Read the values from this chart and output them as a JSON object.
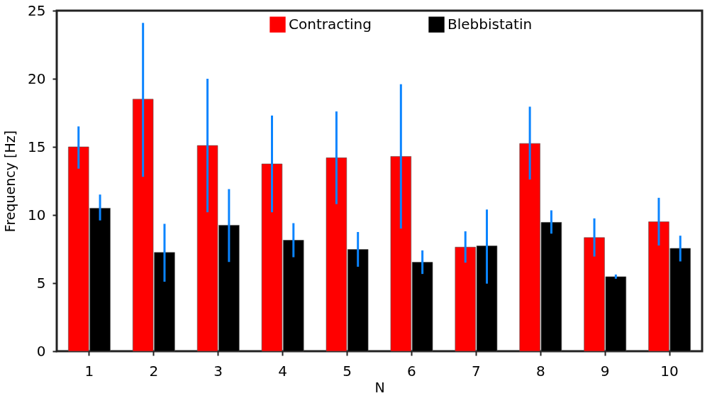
{
  "chart_data": {
    "type": "bar",
    "xlabel": "N",
    "ylabel": "Frequency [Hz]",
    "categories": [
      "1",
      "2",
      "3",
      "4",
      "5",
      "6",
      "7",
      "8",
      "9",
      "10"
    ],
    "series": [
      {
        "name": "Contracting",
        "color": "#ff0000",
        "values": [
          15.0,
          18.5,
          15.1,
          13.75,
          14.2,
          14.3,
          7.64,
          15.25,
          8.34,
          9.5
        ],
        "errors": [
          [
            13.4,
            16.5
          ],
          [
            12.8,
            24.1
          ],
          [
            10.2,
            20.0
          ],
          [
            10.2,
            17.3
          ],
          [
            10.8,
            17.6
          ],
          [
            9.0,
            19.6
          ],
          [
            6.5,
            8.8
          ],
          [
            12.6,
            17.95
          ],
          [
            6.95,
            9.75
          ],
          [
            7.76,
            11.26
          ]
        ]
      },
      {
        "name": "Blebbistatin",
        "color": "#000000",
        "values": [
          10.5,
          7.25,
          9.25,
          8.15,
          7.47,
          6.53,
          7.73,
          9.46,
          5.47,
          7.55
        ],
        "errors": [
          [
            9.6,
            11.5
          ],
          [
            5.1,
            9.35
          ],
          [
            6.55,
            11.9
          ],
          [
            6.9,
            9.4
          ],
          [
            6.2,
            8.75
          ],
          [
            5.67,
            7.4
          ],
          [
            4.96,
            10.4
          ],
          [
            8.63,
            10.34
          ],
          [
            5.32,
            5.63
          ],
          [
            6.59,
            8.48
          ]
        ]
      }
    ],
    "ylim": [
      0,
      25
    ],
    "yticks": [
      0,
      5,
      10,
      15,
      20,
      25
    ],
    "grid": false,
    "legend": "top"
  }
}
